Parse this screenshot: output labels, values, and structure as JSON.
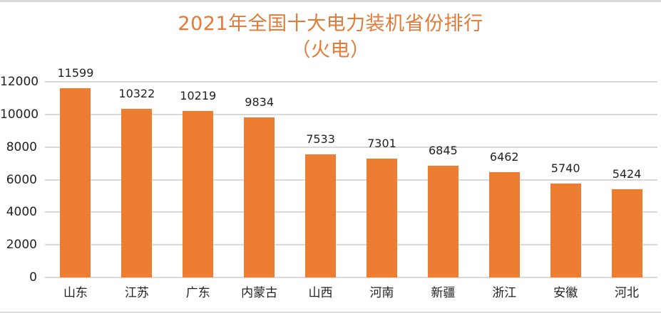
{
  "chart_data": {
    "type": "bar",
    "title": "2021年全国十大电力装机省份排行",
    "subtitle": "（火电）",
    "categories": [
      "山东",
      "江苏",
      "广东",
      "内蒙古",
      "山西",
      "河南",
      "新疆",
      "浙江",
      "安徽",
      "河北"
    ],
    "values": [
      11599,
      10322,
      10219,
      9834,
      7533,
      7301,
      6845,
      6462,
      5740,
      5424
    ],
    "data_labels": [
      "11599",
      "10322",
      "10219",
      "9834",
      "7533",
      "7301",
      "6845",
      "6462",
      "5740",
      "5424"
    ],
    "xlabel": "",
    "ylabel": "",
    "ylim": [
      0,
      12000
    ],
    "yticks": [
      "0",
      "2000",
      "4000",
      "6000",
      "8000",
      "10000",
      "12000"
    ],
    "grid": true,
    "legend": "none",
    "colors": {
      "bar": "#ed7d31",
      "title": "#e07b39",
      "grid": "#d9d9d9"
    }
  }
}
